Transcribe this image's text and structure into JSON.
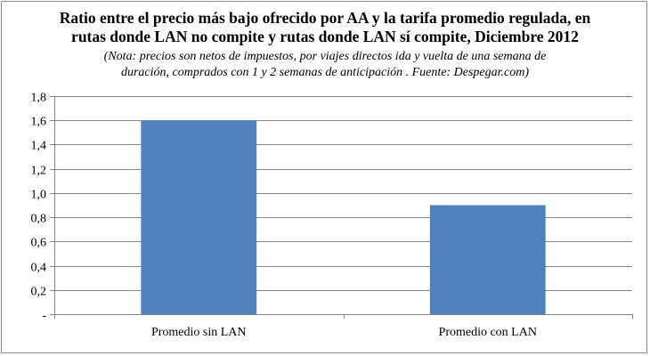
{
  "chart_data": {
    "type": "bar",
    "title_lines": [
      "Ratio entre el precio más bajo ofrecido por AA y la tarifa promedio regulada, en",
      "rutas donde LAN no compite y rutas donde LAN sí compite, Diciembre 2012"
    ],
    "subtitle_lines": [
      "(Nota: precios son netos de impuestos, por viajes directos ida y vuelta de una semana de",
      "duración, comprados con 1 y 2 semanas de anticipación . Fuente: Despegar.com)"
    ],
    "categories": [
      "Promedio sin LAN",
      "Promedio con LAN"
    ],
    "values": [
      1.6,
      0.9
    ],
    "ylim": [
      0,
      1.8
    ],
    "yticks": [
      0,
      0.2,
      0.4,
      0.6,
      0.8,
      1.0,
      1.2,
      1.4,
      1.6,
      1.8
    ],
    "ytick_labels": [
      "-",
      "0,2",
      "0,4",
      "0,6",
      "0,8",
      "1,0",
      "1,2",
      "1,4",
      "1,6",
      "1,8"
    ],
    "grid": true,
    "bar_color": "#4f81bd",
    "grid_color": "#868686"
  }
}
